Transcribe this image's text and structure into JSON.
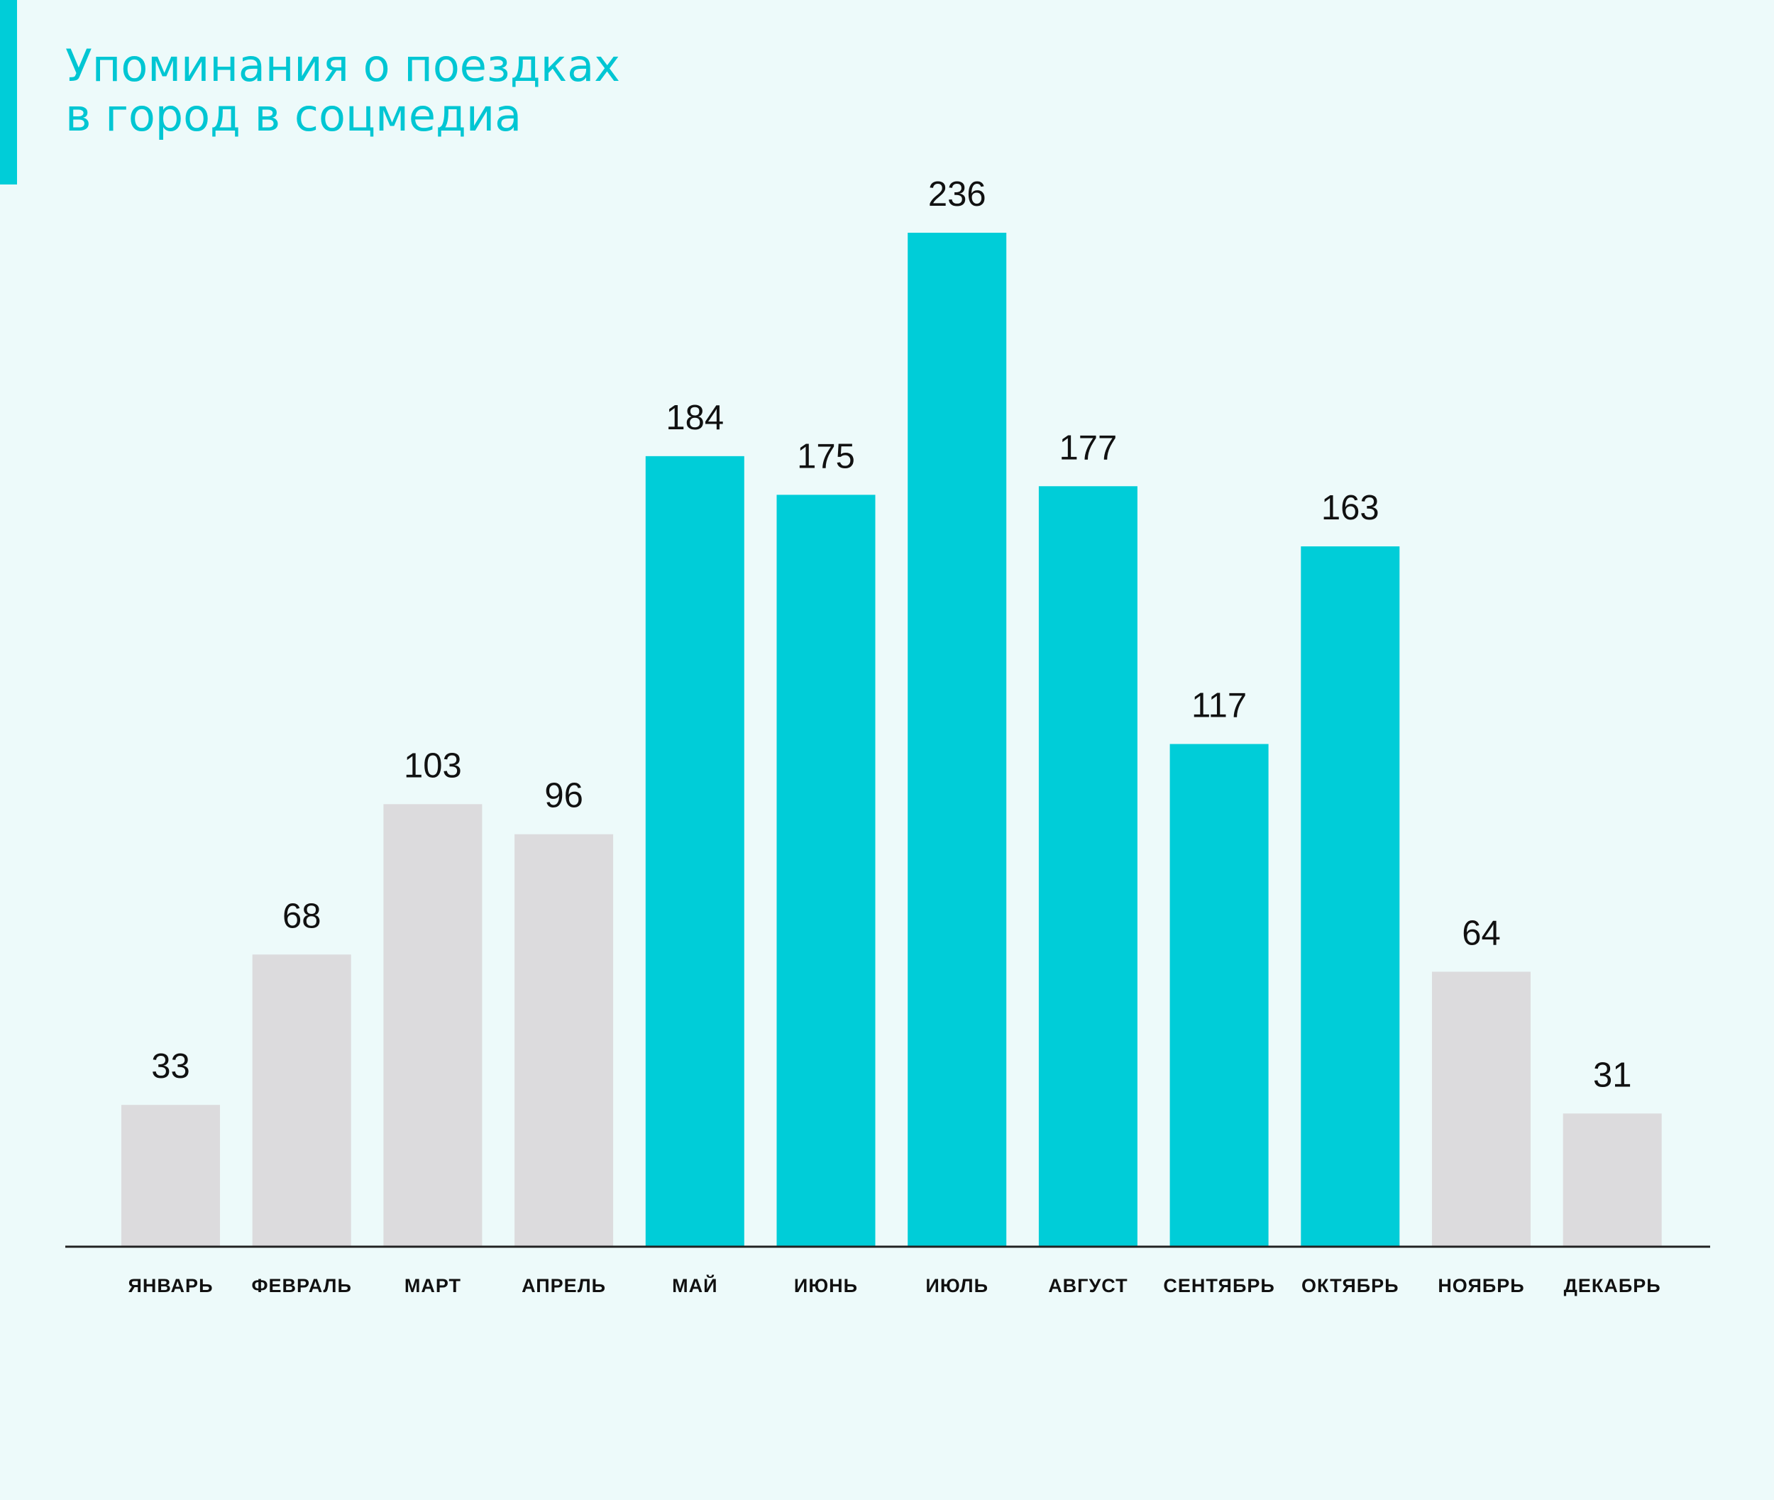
{
  "title": {
    "line1": "Упоминания о поездках",
    "line2": "в город в соцмедиа"
  },
  "colors": {
    "background": "#edfafa",
    "accent": "#00cdd8",
    "highlight_bar": "#00cdd8",
    "muted_bar": "#dcdbdd",
    "axis": "#222222",
    "title_text": "#00c6d3"
  },
  "chart_data": {
    "type": "bar",
    "title": "Упоминания о поездках в город в соцмедиа",
    "xlabel": "",
    "ylabel": "",
    "categories": [
      "ЯНВАРЬ",
      "ФЕВРАЛЬ",
      "МАРТ",
      "АПРЕЛЬ",
      "МАЙ",
      "ИЮНЬ",
      "ИЮЛЬ",
      "АВГУСТ",
      "СЕНТЯБРЬ",
      "ОКТЯБРЬ",
      "НОЯБРЬ",
      "ДЕКАБРЬ"
    ],
    "values": [
      33,
      68,
      103,
      96,
      184,
      175,
      236,
      177,
      117,
      163,
      64,
      31
    ],
    "highlighted": [
      false,
      false,
      false,
      false,
      true,
      true,
      true,
      true,
      true,
      true,
      false,
      false
    ],
    "ylim": [
      0,
      236
    ],
    "grid": false,
    "legend": "none",
    "data_labels": true
  }
}
